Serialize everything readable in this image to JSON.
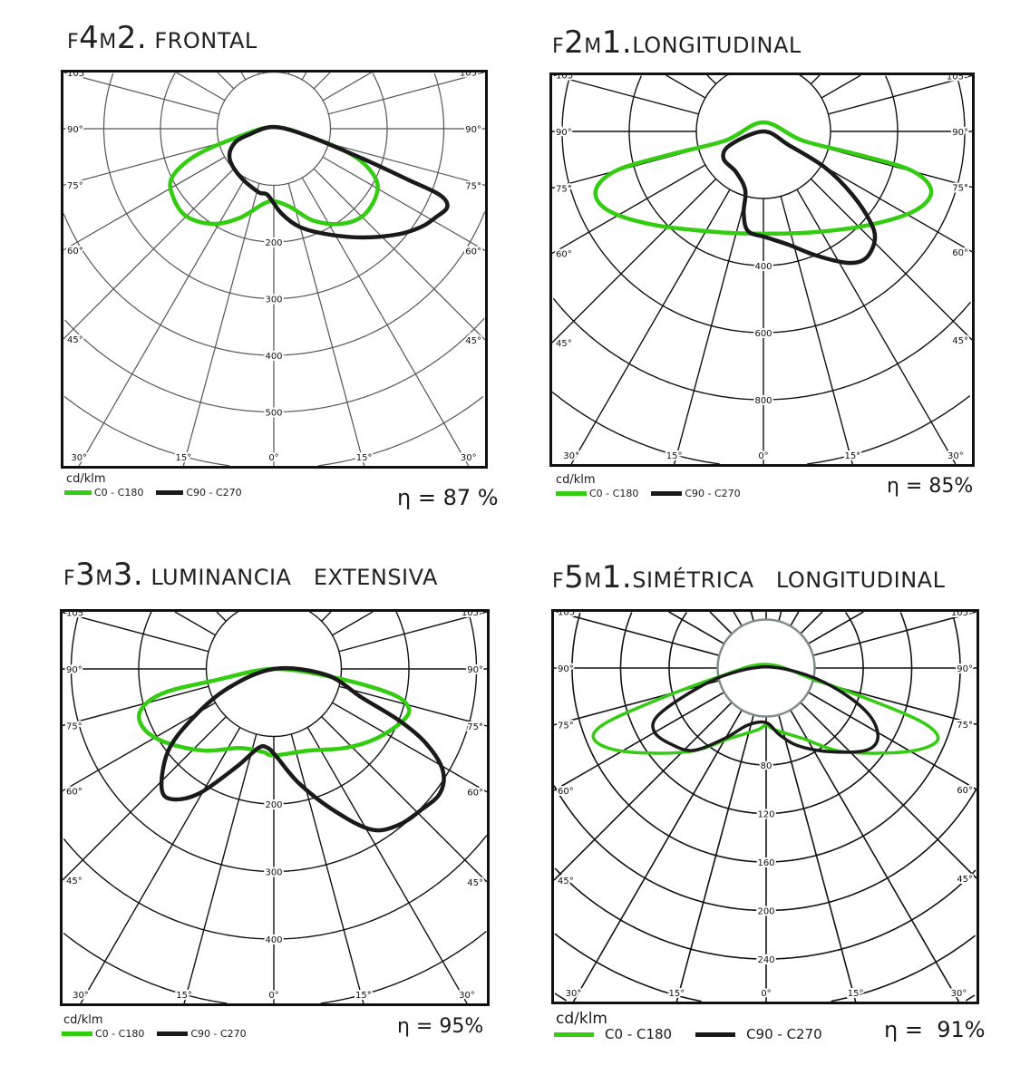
{
  "charts": [
    {
      "type": "polar",
      "title_parts": [
        {
          "t": "F",
          "big": false
        },
        {
          "t": "4",
          "big": true
        },
        {
          "t": "M",
          "big": false
        },
        {
          "t": "2.",
          "big": true
        }
      ],
      "title_name": " FRONTAL",
      "unit": "cd/klm",
      "ring_step": 100,
      "ring_labels": [
        "200",
        "300",
        "400",
        "500"
      ],
      "ring_label_values": [
        200,
        300,
        400,
        500
      ],
      "side_angle_labels": [
        "105°",
        "90°",
        "75°",
        "60°",
        "45°"
      ],
      "side_angle_values": [
        105,
        90,
        75,
        60,
        45
      ],
      "bottom_angle_labels": [
        "30°",
        "15°",
        "0°",
        "15°",
        "30°"
      ],
      "bottom_angle_values": [
        -30,
        -15,
        0,
        15,
        30
      ],
      "efficiency": "η = 87 %",
      "series": [
        {
          "name": "C0 - C180",
          "color": "#33cc11",
          "points": [
            [
              0,
              -3
            ],
            [
              -67,
              16
            ],
            [
              -139,
              48
            ],
            [
              -179,
              85
            ],
            [
              -179,
              117
            ],
            [
              -155,
              154
            ],
            [
              -107,
              168
            ],
            [
              -59,
              157
            ],
            [
              -19,
              133
            ],
            [
              0,
              128
            ],
            [
              29,
              138
            ],
            [
              69,
              162
            ],
            [
              117,
              168
            ],
            [
              157,
              154
            ],
            [
              181,
              117
            ],
            [
              178,
              85
            ],
            [
              141,
              48
            ],
            [
              69,
              16
            ]
          ]
        },
        {
          "name": "C90 - C270",
          "color": "#1a1a1a",
          "points": [
            [
              0,
              -3
            ],
            [
              61,
              13
            ],
            [
              157,
              53
            ],
            [
              237,
              90
            ],
            [
              293,
              117
            ],
            [
              306,
              138
            ],
            [
              285,
              157
            ],
            [
              261,
              173
            ],
            [
              221,
              186
            ],
            [
              157,
              192
            ],
            [
              93,
              186
            ],
            [
              45,
              173
            ],
            [
              13,
              149
            ],
            [
              -11,
              117
            ],
            [
              -27,
              112
            ],
            [
              -59,
              85
            ],
            [
              -78,
              53
            ],
            [
              -70,
              26
            ],
            [
              -43,
              10
            ]
          ]
        }
      ]
    },
    {
      "type": "polar",
      "title_parts": [
        {
          "t": "F",
          "big": false
        },
        {
          "t": "2",
          "big": true
        },
        {
          "t": "M",
          "big": false
        },
        {
          "t": "1.",
          "big": true
        }
      ],
      "title_name": "LONGITUDINAL",
      "unit": "cd/klm",
      "ring_step": 200,
      "ring_labels": [
        "400",
        "600",
        "800"
      ],
      "ring_label_values": [
        400,
        600,
        800
      ],
      "side_angle_labels": [
        "105°",
        "90°",
        "75°",
        "60°",
        "45°"
      ],
      "side_angle_values": [
        105,
        90,
        75,
        60,
        45
      ],
      "bottom_angle_labels": [
        "30°",
        "15°",
        "0°",
        "15°",
        "30°"
      ],
      "bottom_angle_values": [
        -30,
        -15,
        0,
        15,
        30
      ],
      "efficiency": "η = 85%",
      "series": [
        {
          "name": "C0 - C180",
          "color": "#33cc11",
          "points": [
            [
              0,
              -27
            ],
            [
              -113,
              27
            ],
            [
              -275,
              68
            ],
            [
              -437,
              116
            ],
            [
              -500,
              176
            ],
            [
              -464,
              235
            ],
            [
              -329,
              278
            ],
            [
              -140,
              300
            ],
            [
              0,
              305
            ],
            [
              157,
              300
            ],
            [
              319,
              278
            ],
            [
              454,
              235
            ],
            [
              500,
              176
            ],
            [
              440,
              116
            ],
            [
              278,
              68
            ],
            [
              116,
              27
            ]
          ]
        },
        {
          "name": "C90 - C270",
          "color": "#1a1a1a",
          "points": [
            [
              0,
              0
            ],
            [
              76,
              41
            ],
            [
              184,
              108
            ],
            [
              265,
              189
            ],
            [
              319,
              270
            ],
            [
              332,
              324
            ],
            [
              305,
              378
            ],
            [
              251,
              392
            ],
            [
              157,
              370
            ],
            [
              76,
              338
            ],
            [
              8,
              316
            ],
            [
              -46,
              297
            ],
            [
              -59,
              243
            ],
            [
              -54,
              176
            ],
            [
              -81,
              122
            ],
            [
              -119,
              81
            ],
            [
              -100,
              41
            ]
          ]
        }
      ]
    },
    {
      "type": "polar",
      "title_parts": [
        {
          "t": "F",
          "big": false
        },
        {
          "t": "3",
          "big": true
        },
        {
          "t": "M",
          "big": false
        },
        {
          "t": "3.",
          "big": true
        }
      ],
      "title_name": " LUMINANCIA   EXTENSIVA",
      "unit": "cd/klm",
      "ring_step": 100,
      "ring_labels": [
        "200",
        "300",
        "400"
      ],
      "ring_label_values": [
        200,
        300,
        400
      ],
      "side_angle_labels": [
        "105°",
        "90°",
        "75°",
        "60°",
        "45°"
      ],
      "side_angle_values": [
        105,
        90,
        75,
        60,
        45
      ],
      "bottom_angle_labels": [
        "30°",
        "15°",
        "0°",
        "15°",
        "30°"
      ],
      "bottom_angle_values": [
        -30,
        -15,
        0,
        15,
        30
      ],
      "efficiency": "η = 95%",
      "series": [
        {
          "name": "C0 - C180",
          "color": "#33cc11",
          "points": [
            [
              0,
              0
            ],
            [
              -83,
              16
            ],
            [
              -164,
              36
            ],
            [
              -198,
              63
            ],
            [
              -191,
              90
            ],
            [
              -157,
              110
            ],
            [
              -103,
              121
            ],
            [
              -50,
              117
            ],
            [
              -16,
              123
            ],
            [
              0,
              128
            ],
            [
              51,
              121
            ],
            [
              105,
              117
            ],
            [
              152,
              103
            ],
            [
              192,
              76
            ],
            [
              199,
              56
            ],
            [
              172,
              36
            ],
            [
              91,
              13
            ]
          ]
        },
        {
          "name": "C90 - C270",
          "color": "#1a1a1a",
          "points": [
            [
              0,
              0
            ],
            [
              -70,
              30
            ],
            [
              -123,
              76
            ],
            [
              -157,
              123
            ],
            [
              -166,
              177
            ],
            [
              -150,
              193
            ],
            [
              -110,
              184
            ],
            [
              -54,
              144
            ],
            [
              -23,
              117
            ],
            [
              -9,
              117
            ],
            [
              4,
              130
            ],
            [
              38,
              170
            ],
            [
              91,
              211
            ],
            [
              145,
              238
            ],
            [
              185,
              231
            ],
            [
              219,
              208
            ],
            [
              246,
              184
            ],
            [
              250,
              150
            ],
            [
              225,
              110
            ],
            [
              185,
              76
            ],
            [
              131,
              43
            ],
            [
              78,
              9
            ]
          ]
        }
      ]
    },
    {
      "type": "polar",
      "title_parts": [
        {
          "t": "F",
          "big": false
        },
        {
          "t": "5",
          "big": true
        },
        {
          "t": "M",
          "big": false
        },
        {
          "t": "1.",
          "big": true
        }
      ],
      "title_name": "SIMÉTRICA   LONGITUDINAL",
      "unit": "cd/klm",
      "ring_step": 40,
      "ring_labels": [
        "80",
        "120",
        "160",
        "200",
        "240"
      ],
      "ring_label_values": [
        80,
        120,
        160,
        200,
        240
      ],
      "side_angle_labels": [
        "105°",
        "90°",
        "75°",
        "60°",
        "45°"
      ],
      "side_angle_values": [
        105,
        90,
        75,
        60,
        45
      ],
      "bottom_angle_labels": [
        "30°",
        "15°",
        "0°",
        "15°",
        "30°"
      ],
      "bottom_angle_values": [
        -30,
        -15,
        0,
        15,
        30
      ],
      "efficiency": "η =  91%",
      "series": [
        {
          "name": "C0 - C180",
          "color": "#33cc11",
          "points": [
            [
              0,
              -3
            ],
            [
              -41,
              8
            ],
            [
              -94,
              28
            ],
            [
              -135,
              47
            ],
            [
              -141,
              60
            ],
            [
              -116,
              69
            ],
            [
              -64,
              69
            ],
            [
              -30,
              58
            ],
            [
              -7,
              51
            ],
            [
              0,
              47
            ],
            [
              7,
              51
            ],
            [
              30,
              58
            ],
            [
              64,
              69
            ],
            [
              116,
              69
            ],
            [
              141,
              60
            ],
            [
              131,
              46
            ],
            [
              90,
              28
            ],
            [
              41,
              10
            ]
          ]
        },
        {
          "name": "C90 - C270",
          "color": "#1a1a1a",
          "points": [
            [
              0,
              -1
            ],
            [
              -34,
              6
            ],
            [
              -64,
              21
            ],
            [
              -90,
              40
            ],
            [
              -92,
              53
            ],
            [
              -78,
              63
            ],
            [
              -60,
              68
            ],
            [
              -34,
              58
            ],
            [
              -15,
              47
            ],
            [
              0,
              45
            ],
            [
              11,
              55
            ],
            [
              26,
              64
            ],
            [
              52,
              69
            ],
            [
              82,
              68
            ],
            [
              92,
              58
            ],
            [
              86,
              40
            ],
            [
              64,
              21
            ],
            [
              34,
              6
            ]
          ]
        }
      ]
    }
  ]
}
